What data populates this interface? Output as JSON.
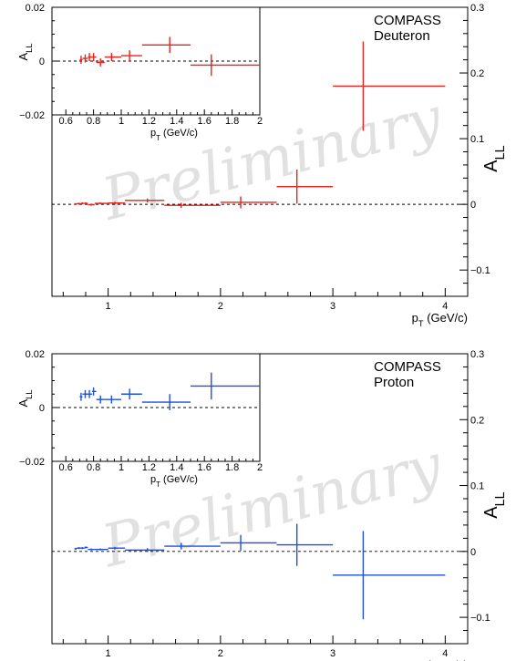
{
  "watermark": "Preliminary",
  "chart_data": [
    {
      "type": "scatter",
      "panel": "deuteron",
      "label_line1": "COMPASS",
      "label_line2": "Deuteron",
      "color": "#e8221c",
      "xlabel": "p_T (GeV/c)",
      "ylabel": "A_LL",
      "xlim": [
        0.5,
        4.2
      ],
      "ylim": [
        -0.14,
        0.3
      ],
      "x_ticks": [
        "1",
        "2",
        "3",
        "4"
      ],
      "y_ticks": [
        "−0.1",
        "0",
        "0.1",
        "0.2",
        "0.3"
      ],
      "points": [
        {
          "x": 0.71,
          "xlo": 0.7,
          "xhi": 0.72,
          "y": 0.0005,
          "err": 0.0015
        },
        {
          "x": 0.74,
          "xlo": 0.72,
          "xhi": 0.76,
          "y": 0.001,
          "err": 0.0015
        },
        {
          "x": 0.77,
          "xlo": 0.76,
          "xhi": 0.79,
          "y": 0.0015,
          "err": 0.0015
        },
        {
          "x": 0.8,
          "xlo": 0.79,
          "xhi": 0.82,
          "y": 0.0015,
          "err": 0.0015
        },
        {
          "x": 0.85,
          "xlo": 0.82,
          "xhi": 0.88,
          "y": -0.0005,
          "err": 0.0015
        },
        {
          "x": 0.93,
          "xlo": 0.88,
          "xhi": 1.0,
          "y": 0.0015,
          "err": 0.0015
        },
        {
          "x": 1.06,
          "xlo": 1.0,
          "xhi": 1.15,
          "y": 0.002,
          "err": 0.002
        },
        {
          "x": 1.35,
          "xlo": 1.15,
          "xhi": 1.5,
          "y": 0.006,
          "err": 0.003
        },
        {
          "x": 1.65,
          "xlo": 1.5,
          "xhi": 2.0,
          "y": -0.0015,
          "err": 0.004
        },
        {
          "x": 2.18,
          "xlo": 2.0,
          "xhi": 2.5,
          "y": 0.003,
          "err": 0.009
        },
        {
          "x": 2.68,
          "xlo": 2.5,
          "xhi": 3.0,
          "y": 0.027,
          "err": 0.026
        },
        {
          "x": 3.27,
          "xlo": 3.0,
          "xhi": 4.0,
          "y": 0.18,
          "err": 0.068
        }
      ],
      "inset": {
        "xlim": [
          0.5,
          2.0
        ],
        "ylim": [
          -0.02,
          0.02
        ],
        "x_ticks": [
          "0.6",
          "0.8",
          "1",
          "1.2",
          "1.4",
          "1.6",
          "1.8",
          "2"
        ],
        "y_ticks": [
          "0.02",
          "0",
          "−0.02"
        ],
        "xlabel": "p_T (GeV/c)",
        "ylabel": "A_LL",
        "points": [
          {
            "x": 0.71,
            "xlo": 0.7,
            "xhi": 0.72,
            "y": 0.0005,
            "err": 0.0015
          },
          {
            "x": 0.74,
            "xlo": 0.72,
            "xhi": 0.76,
            "y": 0.001,
            "err": 0.0015
          },
          {
            "x": 0.77,
            "xlo": 0.76,
            "xhi": 0.79,
            "y": 0.0015,
            "err": 0.0015
          },
          {
            "x": 0.8,
            "xlo": 0.79,
            "xhi": 0.82,
            "y": 0.0015,
            "err": 0.0015
          },
          {
            "x": 0.85,
            "xlo": 0.82,
            "xhi": 0.88,
            "y": -0.0005,
            "err": 0.0015
          },
          {
            "x": 0.93,
            "xlo": 0.88,
            "xhi": 1.0,
            "y": 0.0015,
            "err": 0.0015
          },
          {
            "x": 1.06,
            "xlo": 1.0,
            "xhi": 1.15,
            "y": 0.002,
            "err": 0.002
          },
          {
            "x": 1.35,
            "xlo": 1.15,
            "xhi": 1.5,
            "y": 0.006,
            "err": 0.003
          },
          {
            "x": 1.65,
            "xlo": 1.5,
            "xhi": 2.0,
            "y": -0.0015,
            "err": 0.004
          }
        ]
      }
    },
    {
      "type": "scatter",
      "panel": "proton",
      "label_line1": "COMPASS",
      "label_line2": "Proton",
      "color": "#1f4fe0",
      "xlabel": "p_T (GeV/c)",
      "ylabel": "A_LL",
      "xlim": [
        0.5,
        4.2
      ],
      "ylim": [
        -0.14,
        0.3
      ],
      "x_ticks": [
        "1",
        "2",
        "3",
        "4"
      ],
      "y_ticks": [
        "−0.1",
        "0",
        "0.1",
        "0.2",
        "0.3"
      ],
      "points": [
        {
          "x": 0.71,
          "xlo": 0.7,
          "xhi": 0.72,
          "y": 0.004,
          "err": 0.0015
        },
        {
          "x": 0.74,
          "xlo": 0.72,
          "xhi": 0.76,
          "y": 0.005,
          "err": 0.0015
        },
        {
          "x": 0.77,
          "xlo": 0.76,
          "xhi": 0.79,
          "y": 0.005,
          "err": 0.0015
        },
        {
          "x": 0.8,
          "xlo": 0.79,
          "xhi": 0.82,
          "y": 0.006,
          "err": 0.0015
        },
        {
          "x": 0.85,
          "xlo": 0.82,
          "xhi": 0.88,
          "y": 0.003,
          "err": 0.0015
        },
        {
          "x": 0.93,
          "xlo": 0.88,
          "xhi": 1.0,
          "y": 0.003,
          "err": 0.0015
        },
        {
          "x": 1.06,
          "xlo": 1.0,
          "xhi": 1.15,
          "y": 0.005,
          "err": 0.002
        },
        {
          "x": 1.35,
          "xlo": 1.15,
          "xhi": 1.5,
          "y": 0.002,
          "err": 0.003
        },
        {
          "x": 1.65,
          "xlo": 1.5,
          "xhi": 2.0,
          "y": 0.008,
          "err": 0.005
        },
        {
          "x": 2.18,
          "xlo": 2.0,
          "xhi": 2.5,
          "y": 0.013,
          "err": 0.012
        },
        {
          "x": 2.68,
          "xlo": 2.5,
          "xhi": 3.0,
          "y": 0.01,
          "err": 0.032
        },
        {
          "x": 3.27,
          "xlo": 3.0,
          "xhi": 4.0,
          "y": -0.036,
          "err": 0.067
        }
      ],
      "inset": {
        "xlim": [
          0.5,
          2.0
        ],
        "ylim": [
          -0.02,
          0.02
        ],
        "x_ticks": [
          "0.6",
          "0.8",
          "1",
          "1.2",
          "1.4",
          "1.6",
          "1.8",
          "2"
        ],
        "y_ticks": [
          "0.02",
          "0",
          "−0.02"
        ],
        "xlabel": "p_T (GeV/c)",
        "ylabel": "A_LL",
        "points": [
          {
            "x": 0.71,
            "xlo": 0.7,
            "xhi": 0.72,
            "y": 0.004,
            "err": 0.0015
          },
          {
            "x": 0.74,
            "xlo": 0.72,
            "xhi": 0.76,
            "y": 0.005,
            "err": 0.0015
          },
          {
            "x": 0.77,
            "xlo": 0.76,
            "xhi": 0.79,
            "y": 0.005,
            "err": 0.0015
          },
          {
            "x": 0.8,
            "xlo": 0.79,
            "xhi": 0.82,
            "y": 0.006,
            "err": 0.0015
          },
          {
            "x": 0.85,
            "xlo": 0.82,
            "xhi": 0.88,
            "y": 0.003,
            "err": 0.0015
          },
          {
            "x": 0.93,
            "xlo": 0.88,
            "xhi": 1.0,
            "y": 0.003,
            "err": 0.0015
          },
          {
            "x": 1.06,
            "xlo": 1.0,
            "xhi": 1.15,
            "y": 0.005,
            "err": 0.002
          },
          {
            "x": 1.35,
            "xlo": 1.15,
            "xhi": 1.5,
            "y": 0.002,
            "err": 0.003
          },
          {
            "x": 1.65,
            "xlo": 1.5,
            "xhi": 2.0,
            "y": 0.008,
            "err": 0.005
          }
        ]
      }
    }
  ]
}
